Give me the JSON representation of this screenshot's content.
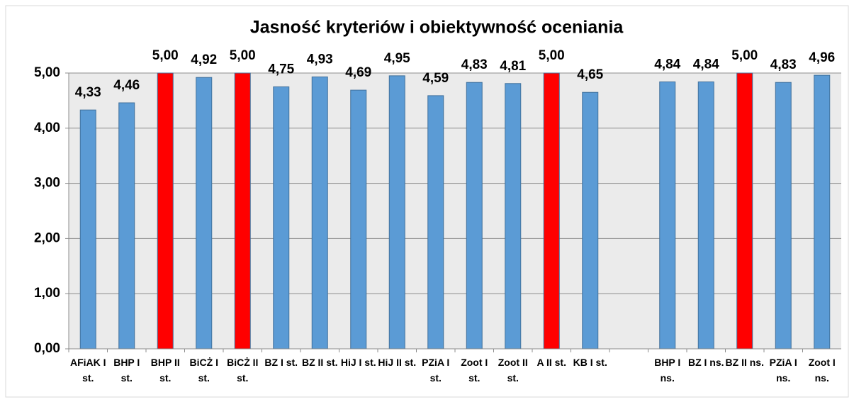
{
  "chart_data": {
    "type": "bar",
    "title": "Jasność kryteriów i obiektywność oceniania",
    "categories": [
      "AFiAK I st.",
      "BHP I st.",
      "BHP II st.",
      "BiCŻ I st.",
      "BiCŻ II st.",
      "BZ I st.",
      "BZ II st.",
      "HiJ I st.",
      "HiJ II st.",
      "PZiA I st.",
      "Zoot I st.",
      "Zoot II st.",
      "A II st.",
      "KB I st.",
      null,
      "BHP I ns.",
      "BZ I ns.",
      "BZ II ns.",
      "PZiA I ns.",
      "Zoot I ns."
    ],
    "values": [
      4.33,
      4.46,
      5,
      4.92,
      5,
      4.75,
      4.93,
      4.69,
      4.95,
      4.59,
      4.83,
      4.81,
      5,
      4.65,
      null,
      4.84,
      4.84,
      5,
      4.83,
      4.96
    ],
    "value_labels": [
      "4,33",
      "4,46",
      "5,00",
      "4,92",
      "5,00",
      "4,75",
      "4,93",
      "4,69",
      "4,95",
      "4,59",
      "4,83",
      "4,81",
      "5,00",
      "4,65",
      null,
      "4,84",
      "4,84",
      "5,00",
      "4,83",
      "4,96"
    ],
    "colors": [
      "#5b9bd5",
      "#5b9bd5",
      "#ff0000",
      "#5b9bd5",
      "#ff0000",
      "#5b9bd5",
      "#5b9bd5",
      "#5b9bd5",
      "#5b9bd5",
      "#5b9bd5",
      "#5b9bd5",
      "#5b9bd5",
      "#ff0000",
      "#5b9bd5",
      null,
      "#5b9bd5",
      "#5b9bd5",
      "#ff0000",
      "#5b9bd5",
      "#5b9bd5"
    ],
    "ylim": [
      0,
      5
    ],
    "yticks": [
      {
        "value": 0,
        "label": "0,00"
      },
      {
        "value": 1,
        "label": "1,00"
      },
      {
        "value": 2,
        "label": "2,00"
      },
      {
        "value": 3,
        "label": "3,00"
      },
      {
        "value": 4,
        "label": "4,00"
      },
      {
        "value": 5,
        "label": "5,00"
      }
    ],
    "grid": true
  }
}
